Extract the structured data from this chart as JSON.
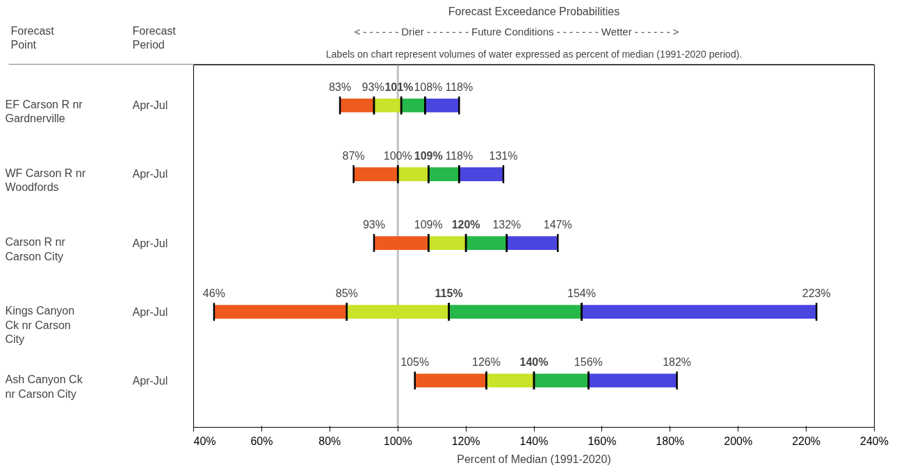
{
  "chart_data": {
    "type": "bar",
    "orientation": "horizontal",
    "title": "Forecast Exceedance Probabilities",
    "subtitle": "< - - - - - -  Drier  - - - - - - -     Future Conditions     - - - - - - -  Wetter  - - - - - - >",
    "xlabel": "Percent of Median (1991-2020)",
    "categories": [
      "EF Carson R nr Gardnerville",
      "WF Carson R nr Woodfords",
      "Carson R nr Carson City",
      "Kings Canyon Ck nr Carson City",
      "Ash Canyon Ck nr Carson City"
    ],
    "series": [
      {
        "color": "#ee5a1e",
        "base": [
          83,
          87,
          93,
          46,
          105
        ],
        "values": [
          10,
          13,
          16,
          39,
          21
        ]
      },
      {
        "color": "#c9e22a",
        "base": [
          93,
          100,
          109,
          85,
          126
        ],
        "values": [
          8,
          9,
          11,
          30,
          14
        ]
      },
      {
        "color": "#26b84a",
        "base": [
          101,
          109,
          120,
          115,
          140
        ],
        "values": [
          7,
          9,
          12,
          39,
          16
        ]
      },
      {
        "color": "#4b45e0",
        "base": [
          108,
          118,
          132,
          154,
          156
        ],
        "values": [
          10,
          13,
          15,
          69,
          26
        ]
      }
    ],
    "xlim": [
      40,
      240
    ],
    "xticks": [
      {
        "value": 40,
        "label": "40%"
      },
      {
        "value": 60,
        "label": "60%"
      },
      {
        "value": 80,
        "label": "80%"
      },
      {
        "value": 100,
        "label": "100%"
      },
      {
        "value": 120,
        "label": "120%"
      },
      {
        "value": 140,
        "label": "140%"
      },
      {
        "value": 160,
        "label": "160%"
      },
      {
        "value": 180,
        "label": "180%"
      },
      {
        "value": 200,
        "label": "200%"
      },
      {
        "value": 220,
        "label": "220%"
      },
      {
        "value": 240,
        "label": "240%"
      }
    ],
    "ref_lines": [
      {
        "axis": "x",
        "value": 100,
        "color": "#c0c0c0"
      }
    ],
    "annotations": [
      "Labels on chart represent volumes of water expressed as percent of median (1991-2020 period).",
      "Forecast Point",
      "Forecast Period",
      "Apr-Jul",
      "Apr-Jul",
      "Apr-Jul",
      "Apr-Jul",
      "Apr-Jul",
      {
        "text": "83%",
        "x": 83,
        "y": "EF Carson R nr Gardnerville"
      },
      {
        "text": "93%",
        "x": 93,
        "y": "EF Carson R nr Gardnerville"
      },
      {
        "text": "101%",
        "x": 101,
        "y": "EF Carson R nr Gardnerville"
      },
      {
        "text": "108%",
        "x": 108,
        "y": "EF Carson R nr Gardnerville"
      },
      {
        "text": "118%",
        "x": 118,
        "y": "EF Carson R nr Gardnerville"
      },
      {
        "text": "87%",
        "x": 87,
        "y": "WF Carson R nr Woodfords"
      },
      {
        "text": "100%",
        "x": 100,
        "y": "WF Carson R nr Woodfords"
      },
      {
        "text": "109%",
        "x": 109,
        "y": "WF Carson R nr Woodfords"
      },
      {
        "text": "118%",
        "x": 118,
        "y": "WF Carson R nr Woodfords"
      },
      {
        "text": "131%",
        "x": 131,
        "y": "WF Carson R nr Woodfords"
      },
      {
        "text": "93%",
        "x": 93,
        "y": "Carson R nr Carson City"
      },
      {
        "text": "109%",
        "x": 109,
        "y": "Carson R nr Carson City"
      },
      {
        "text": "120%",
        "x": 120,
        "y": "Carson R nr Carson City"
      },
      {
        "text": "132%",
        "x": 132,
        "y": "Carson R nr Carson City"
      },
      {
        "text": "147%",
        "x": 147,
        "y": "Carson R nr Carson City"
      },
      {
        "text": "46%",
        "x": 46,
        "y": "Kings Canyon Ck nr Carson City"
      },
      {
        "text": "85%",
        "x": 85,
        "y": "Kings Canyon Ck nr Carson City"
      },
      {
        "text": "115%",
        "x": 115,
        "y": "Kings Canyon Ck nr Carson City"
      },
      {
        "text": "154%",
        "x": 154,
        "y": "Kings Canyon Ck nr Carson City"
      },
      {
        "text": "223%",
        "x": 223,
        "y": "Kings Canyon Ck nr Carson City"
      },
      {
        "text": "105%",
        "x": 105,
        "y": "Ash Canyon Ck nr Carson City"
      },
      {
        "text": "126%",
        "x": 126,
        "y": "Ash Canyon Ck nr Carson City"
      },
      {
        "text": "140%",
        "x": 140,
        "y": "Ash Canyon Ck nr Carson City"
      },
      {
        "text": "156%",
        "x": 156,
        "y": "Ash Canyon Ck nr Carson City"
      },
      {
        "text": "182%",
        "x": 182,
        "y": "Ash Canyon Ck nr Carson City"
      }
    ]
  }
}
